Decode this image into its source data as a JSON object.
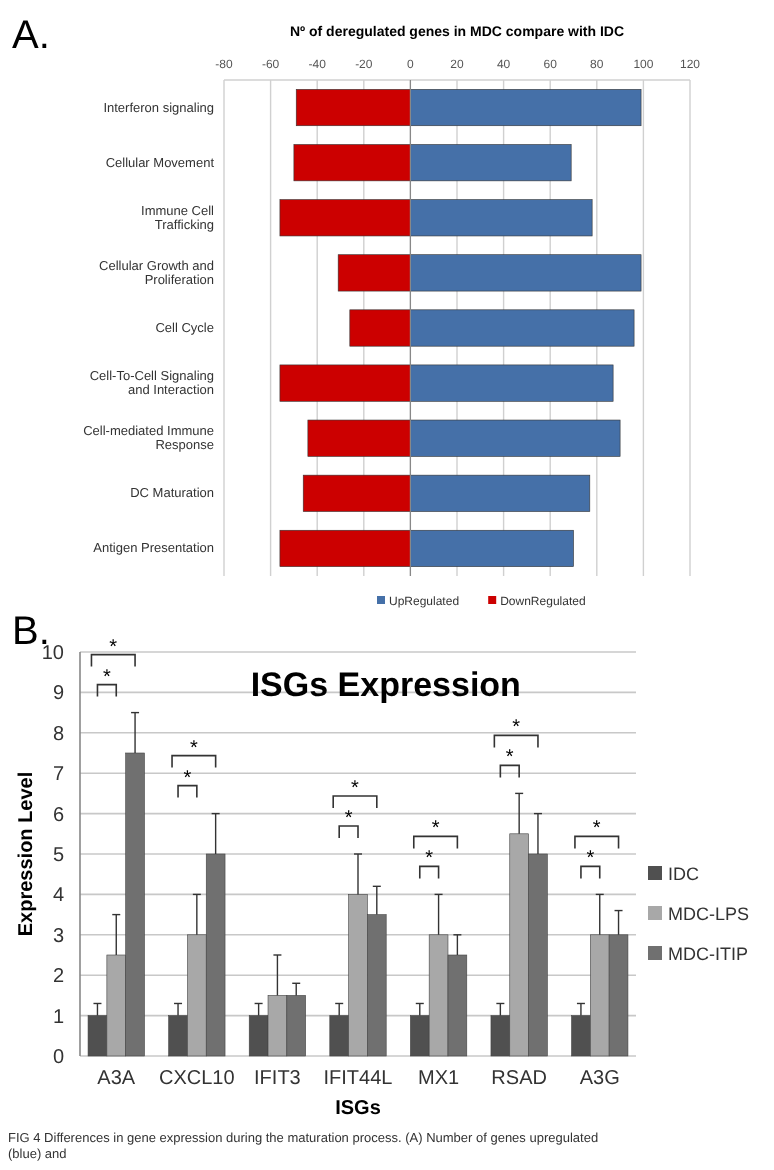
{
  "chart_data": [
    {
      "type": "bar",
      "orientation": "horizontal",
      "stacked": true,
      "title": "Nº of deregulated genes in MDC compare with IDC",
      "categories": [
        "Interferon signaling",
        "Cellular Movement",
        "Immune Cell Trafficking",
        "Cellular Growth and Proliferation",
        "Cell Cycle",
        "Cell-To-Cell Signaling and Interaction",
        "Cell-mediated Immune Response",
        "DC Maturation",
        "Antigen Presentation"
      ],
      "series": [
        {
          "name": "UpRegulated",
          "color": "#4570a8",
          "values": [
            99,
            69,
            78,
            99,
            96,
            87,
            90,
            77,
            70
          ]
        },
        {
          "name": "DownRegulated",
          "color": "#cc0000",
          "values": [
            -49,
            -50,
            -56,
            -31,
            -26,
            -56,
            -44,
            -46,
            -56
          ]
        }
      ],
      "xlim": [
        -80,
        120
      ],
      "xticks": [
        -80,
        -60,
        -40,
        -20,
        0,
        20,
        40,
        60,
        80,
        100,
        120
      ],
      "grid": "x",
      "legend": "bottom",
      "annotations": [
        "A."
      ]
    },
    {
      "type": "bar",
      "title": "ISGs Expression",
      "xlabel": "ISGs",
      "ylabel": "Expression Level",
      "categories": [
        "A3A",
        "CXCL10",
        "IFIT3",
        "IFIT44L",
        "MX1",
        "RSAD",
        "A3G"
      ],
      "series": [
        {
          "name": "IDC",
          "color": "#505050",
          "values": [
            1,
            1,
            1,
            1,
            1,
            1,
            1
          ],
          "errors": [
            [
              1,
              1.3
            ],
            [
              1,
              1.3
            ],
            [
              1,
              1.3
            ],
            [
              1,
              1.3
            ],
            [
              1,
              1.3
            ],
            [
              1,
              1.3
            ],
            [
              1,
              1.3
            ]
          ]
        },
        {
          "name": "MDC-LPS",
          "color": "#a8a8a8",
          "values": [
            2.5,
            3,
            1.5,
            4,
            3,
            5.5,
            3
          ],
          "errors": [
            [
              2.5,
              3.5
            ],
            [
              3,
              4
            ],
            [
              1.5,
              2.5
            ],
            [
              4,
              5
            ],
            [
              3,
              4
            ],
            [
              5.5,
              6.5
            ],
            [
              3,
              4
            ]
          ]
        },
        {
          "name": "MDC-ITIP",
          "color": "#707070",
          "values": [
            7.5,
            5,
            1.5,
            3.5,
            2.5,
            5,
            3
          ],
          "errors": [
            [
              7.5,
              8.5
            ],
            [
              5,
              6
            ],
            [
              1.5,
              1.8
            ],
            [
              3.5,
              4.2
            ],
            [
              2.5,
              3
            ],
            [
              5,
              6
            ],
            [
              3,
              3.6
            ]
          ]
        }
      ],
      "ylim": [
        0,
        10
      ],
      "yticks": [
        0,
        1,
        2,
        3,
        4,
        5,
        6,
        7,
        8,
        9,
        10
      ],
      "grid": "y",
      "legend": "right",
      "annotations": [
        "B.",
        "FIG 4 Differences in gene expression during the maturation process. (A) Number of genes upregulated (blue) and",
        "*",
        "*",
        "*",
        "*",
        "*",
        "*",
        "*",
        "*",
        "*",
        "*",
        "*",
        "*"
      ]
    }
  ]
}
